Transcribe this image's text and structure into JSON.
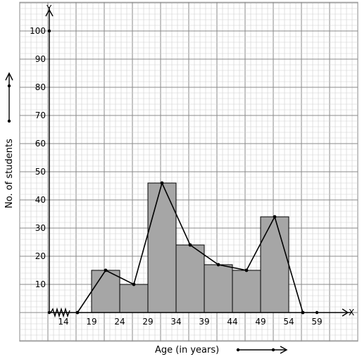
{
  "chart_data": {
    "type": "bar",
    "subtype": "histogram with frequency polygon",
    "xlabel": "Age (in years)",
    "ylabel": "No. of students",
    "x_axis_letter": "X",
    "y_axis_letter": "Y",
    "x_ticks": [
      "14",
      "19",
      "24",
      "29",
      "34",
      "39",
      "44",
      "49",
      "54",
      "59"
    ],
    "y_ticks": [
      "10",
      "20",
      "30",
      "40",
      "50",
      "60",
      "70",
      "80",
      "90",
      "100"
    ],
    "ylim": [
      0,
      100
    ],
    "grid": true,
    "bins": [
      {
        "from": 19.5,
        "to": 24.5,
        "value": 15
      },
      {
        "from": 24.5,
        "to": 29.5,
        "value": 10
      },
      {
        "from": 29.5,
        "to": 34.5,
        "value": 46
      },
      {
        "from": 34.5,
        "to": 39.5,
        "value": 24
      },
      {
        "from": 39.5,
        "to": 44.5,
        "value": 17
      },
      {
        "from": 44.5,
        "to": 49.5,
        "value": 15
      },
      {
        "from": 49.5,
        "to": 54.5,
        "value": 34
      }
    ],
    "polygon": [
      {
        "x": 17,
        "y": 0
      },
      {
        "x": 22,
        "y": 15
      },
      {
        "x": 27,
        "y": 10
      },
      {
        "x": 32,
        "y": 46
      },
      {
        "x": 37,
        "y": 24
      },
      {
        "x": 42,
        "y": 17
      },
      {
        "x": 47,
        "y": 15
      },
      {
        "x": 52,
        "y": 34
      },
      {
        "x": 57,
        "y": 0
      }
    ],
    "colors": {
      "bar": "#a6a6a6",
      "grid": "#bdbdbd",
      "axis": "#000000"
    }
  }
}
